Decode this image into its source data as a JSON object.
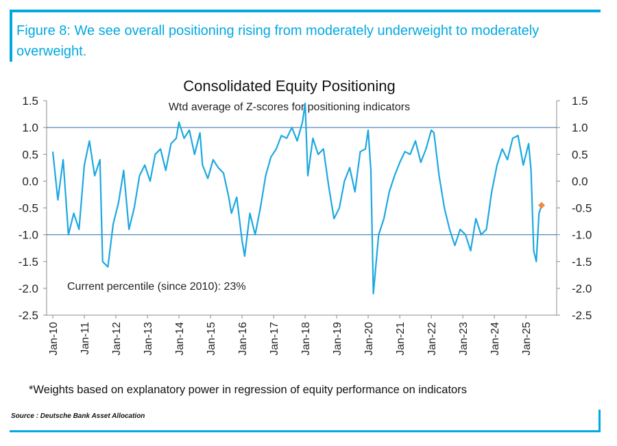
{
  "figure_title": "Figure 8: We see overall positioning rising from moderately underweight to moderately overweight.",
  "footnote": "*Weights based on explanatory power in regression of equity performance on indicators",
  "source": "Source : Deutsche Bank Asset Allocation",
  "colors": {
    "accent": "#00a8e1",
    "series": "#1ba8e0",
    "marker": "#f08a3e",
    "refline": "#2b6ea6"
  },
  "chart_data": {
    "type": "line",
    "title": "Consolidated Equity Positioning",
    "subtitle": "Wtd average of Z-scores for positioning indicators",
    "annotation": "Current percentile (since 2010): 23%",
    "xlabel": "",
    "ylabel": "",
    "ylim": [
      -2.5,
      1.5
    ],
    "y_ticks": [
      "1.5",
      "1.0",
      "0.5",
      "0.0",
      "-0.5",
      "-1.0",
      "-1.5",
      "-2.0",
      "-2.5"
    ],
    "x_ticks": [
      "Jan-10",
      "Jan-11",
      "Jan-12",
      "Jan-13",
      "Jan-14",
      "Jan-15",
      "Jan-16",
      "Jan-17",
      "Jan-18",
      "Jan-19",
      "Jan-20",
      "Jan-21",
      "Jan-22",
      "Jan-23",
      "Jan-24",
      "Jan-25"
    ],
    "reference_lines": [
      1.0,
      -1.0
    ],
    "secondary_axis": true,
    "grid": false,
    "series": [
      {
        "x": [
          "2010-01",
          "2010-03",
          "2010-05",
          "2010-07",
          "2010-09",
          "2010-11",
          "2011-01",
          "2011-03",
          "2011-05",
          "2011-07",
          "2011-08",
          "2011-10",
          "2011-12",
          "2012-02",
          "2012-04",
          "2012-06",
          "2012-08",
          "2012-10",
          "2012-12",
          "2013-02",
          "2013-04",
          "2013-06",
          "2013-08",
          "2013-10",
          "2013-12",
          "2014-01",
          "2014-03",
          "2014-05",
          "2014-07",
          "2014-09",
          "2014-10",
          "2014-12",
          "2015-02",
          "2015-04",
          "2015-06",
          "2015-08",
          "2015-09",
          "2015-11",
          "2016-01",
          "2016-02",
          "2016-04",
          "2016-06",
          "2016-08",
          "2016-10",
          "2016-12",
          "2017-02",
          "2017-04",
          "2017-06",
          "2017-08",
          "2017-10",
          "2017-12",
          "2018-01",
          "2018-02",
          "2018-04",
          "2018-06",
          "2018-08",
          "2018-10",
          "2018-12",
          "2019-02",
          "2019-04",
          "2019-06",
          "2019-08",
          "2019-10",
          "2019-12",
          "2020-01",
          "2020-02",
          "2020-03",
          "2020-05",
          "2020-07",
          "2020-09",
          "2020-11",
          "2021-01",
          "2021-03",
          "2021-05",
          "2021-07",
          "2021-09",
          "2021-11",
          "2022-01",
          "2022-02",
          "2022-04",
          "2022-06",
          "2022-08",
          "2022-10",
          "2022-12",
          "2023-02",
          "2023-04",
          "2023-06",
          "2023-08",
          "2023-10",
          "2023-12",
          "2024-02",
          "2024-04",
          "2024-06",
          "2024-08",
          "2024-10",
          "2024-12",
          "2025-02",
          "2025-03",
          "2025-04",
          "2025-05",
          "2025-06",
          "2025-07"
        ],
        "values": [
          0.55,
          -0.35,
          0.4,
          -1.0,
          -0.6,
          -0.9,
          0.3,
          0.75,
          0.1,
          0.4,
          -1.5,
          -1.6,
          -0.8,
          -0.4,
          0.2,
          -0.9,
          -0.5,
          0.1,
          0.3,
          0.0,
          0.5,
          0.6,
          0.2,
          0.7,
          0.8,
          1.1,
          0.8,
          0.95,
          0.5,
          0.9,
          0.3,
          0.05,
          0.4,
          0.25,
          0.15,
          -0.3,
          -0.6,
          -0.3,
          -1.1,
          -1.4,
          -0.6,
          -1.0,
          -0.5,
          0.1,
          0.45,
          0.6,
          0.85,
          0.8,
          1.0,
          0.75,
          1.1,
          1.45,
          0.1,
          0.8,
          0.5,
          0.6,
          -0.1,
          -0.7,
          -0.5,
          0.0,
          0.25,
          -0.2,
          0.55,
          0.6,
          0.95,
          0.2,
          -2.1,
          -1.0,
          -0.7,
          -0.2,
          0.1,
          0.35,
          0.55,
          0.5,
          0.75,
          0.35,
          0.6,
          0.95,
          0.9,
          0.1,
          -0.5,
          -0.9,
          -1.2,
          -0.9,
          -1.0,
          -1.3,
          -0.7,
          -1.0,
          -0.9,
          -0.2,
          0.3,
          0.6,
          0.4,
          0.8,
          0.85,
          0.3,
          0.7,
          0.2,
          -1.3,
          -1.5,
          -0.6,
          -0.45
        ]
      }
    ],
    "current_marker": {
      "x": "2025-07",
      "y": -0.45
    }
  }
}
